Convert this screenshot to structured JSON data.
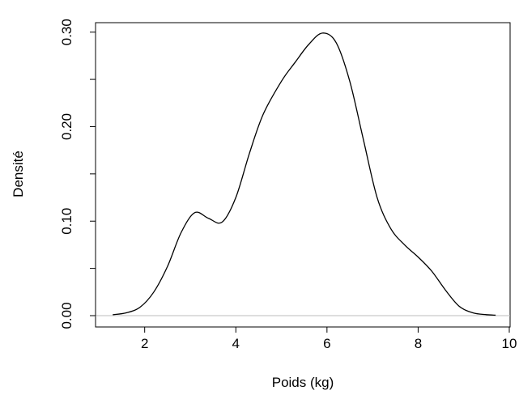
{
  "chart_data": {
    "type": "line",
    "title": "",
    "xlabel": "Poids (kg)",
    "ylabel": "Densité",
    "xlim": [
      1,
      10
    ],
    "ylim": [
      0,
      0.3
    ],
    "x_ticks": [
      2,
      4,
      6,
      8,
      10
    ],
    "x_tick_labels": [
      "2",
      "4",
      "6",
      "8",
      "10"
    ],
    "y_ticks": [
      0,
      0.1,
      0.2,
      0.3
    ],
    "y_tick_labels": [
      "0.00",
      "0.10",
      "0.20",
      "0.30"
    ],
    "grid": false,
    "baseline": 0,
    "series": [
      {
        "points": [
          [
            1.3,
            0.001
          ],
          [
            1.6,
            0.003
          ],
          [
            1.9,
            0.009
          ],
          [
            2.2,
            0.025
          ],
          [
            2.5,
            0.052
          ],
          [
            2.8,
            0.088
          ],
          [
            3.1,
            0.109
          ],
          [
            3.4,
            0.103
          ],
          [
            3.7,
            0.099
          ],
          [
            4.0,
            0.125
          ],
          [
            4.3,
            0.172
          ],
          [
            4.6,
            0.213
          ],
          [
            5.0,
            0.248
          ],
          [
            5.3,
            0.268
          ],
          [
            5.6,
            0.287
          ],
          [
            5.9,
            0.299
          ],
          [
            6.2,
            0.289
          ],
          [
            6.5,
            0.248
          ],
          [
            6.8,
            0.186
          ],
          [
            7.1,
            0.125
          ],
          [
            7.4,
            0.092
          ],
          [
            7.7,
            0.075
          ],
          [
            8.0,
            0.062
          ],
          [
            8.3,
            0.047
          ],
          [
            8.6,
            0.027
          ],
          [
            8.9,
            0.01
          ],
          [
            9.2,
            0.003
          ],
          [
            9.5,
            0.001
          ],
          [
            9.7,
            0.0005
          ]
        ]
      }
    ]
  }
}
